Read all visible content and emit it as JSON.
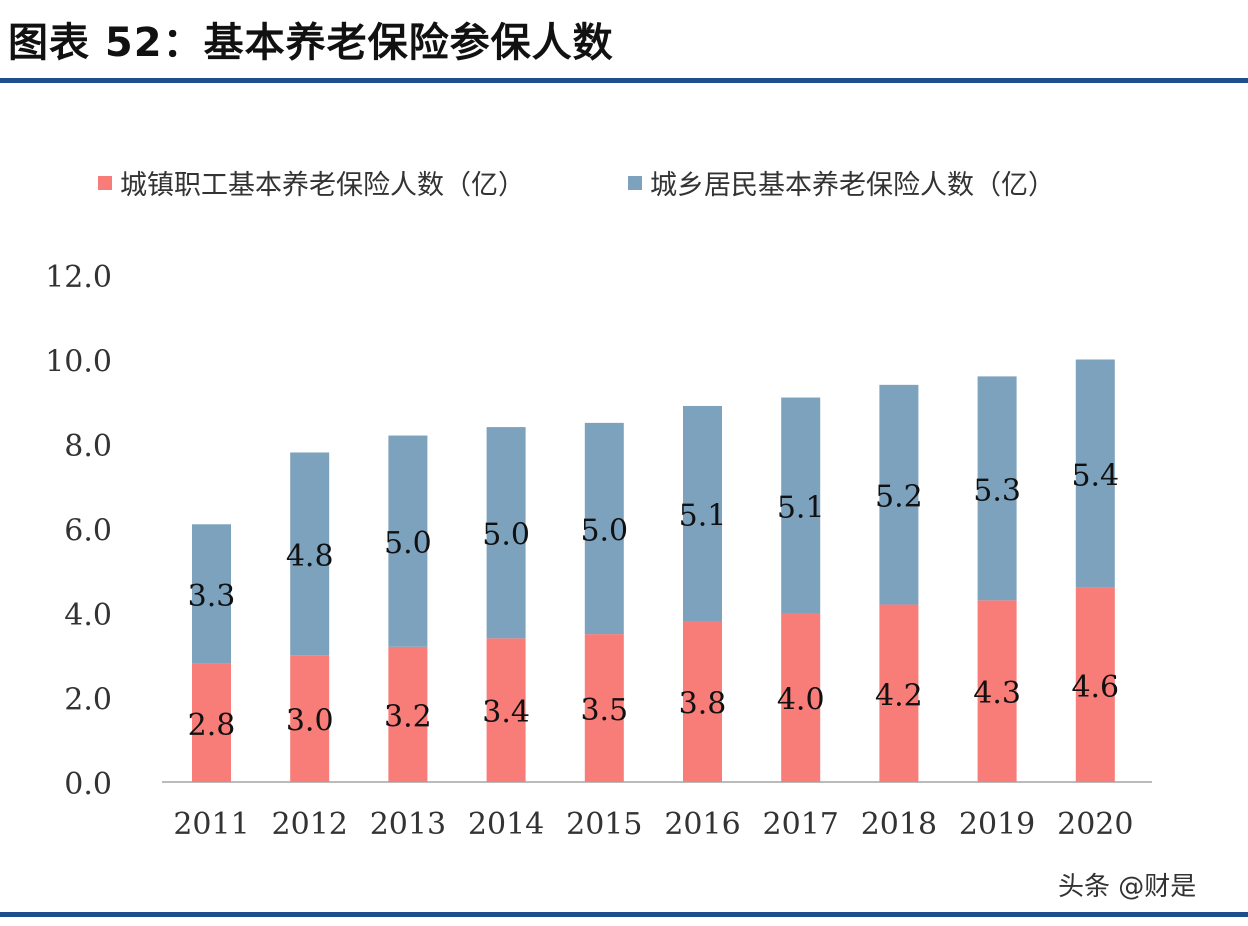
{
  "header": {
    "title": "图表 52：基本养老保险参保人数"
  },
  "watermark": "头条 @财是",
  "colors": {
    "rule": "#1f4e8c"
  },
  "chart_data": {
    "type": "bar",
    "stacked": true,
    "categories": [
      "2011",
      "2012",
      "2013",
      "2014",
      "2015",
      "2016",
      "2017",
      "2018",
      "2019",
      "2020"
    ],
    "series": [
      {
        "name": "城镇职工基本养老保险人数（亿）",
        "color": "#f87c78",
        "values": [
          2.8,
          3.0,
          3.2,
          3.4,
          3.5,
          3.8,
          4.0,
          4.2,
          4.3,
          4.6
        ],
        "labels": [
          "2.8",
          "3.0",
          "3.2",
          "3.4",
          "3.5",
          "3.8",
          "4.0",
          "4.2",
          "4.3",
          "4.6"
        ]
      },
      {
        "name": "城乡居民基本养老保险人数（亿）",
        "color": "#7da2bd",
        "values": [
          3.3,
          4.8,
          5.0,
          5.0,
          5.0,
          5.1,
          5.1,
          5.2,
          5.3,
          5.4
        ],
        "labels": [
          "3.3",
          "4.8",
          "5.0",
          "5.0",
          "5.0",
          "5.1",
          "5.1",
          "5.2",
          "5.3",
          "5.4"
        ]
      }
    ],
    "ylim": [
      0,
      12
    ],
    "yticks": [
      "0.0",
      "2.0",
      "4.0",
      "6.0",
      "8.0",
      "10.0",
      "12.0"
    ],
    "grid": false,
    "legend": "top"
  }
}
